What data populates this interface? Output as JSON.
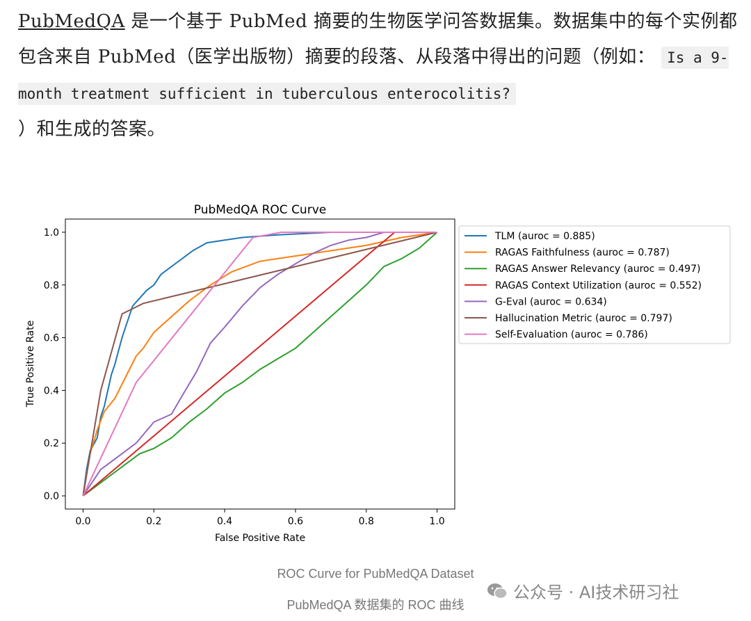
{
  "article": {
    "link_text": "PubMedQA",
    "text_1": " 是一个基于 PubMed 摘要的生物医学问答数据集。数据集中的每个实例都包含来自 PubMed（医学出版物）摘要的段落、从段落中得出的问题（例如：",
    "code_example": "Is a 9-month treatment sufficient in tuberculous enterocolitis?",
    "text_2": "）和生成的答案。"
  },
  "chart_data": {
    "type": "line",
    "title": "PubMedQA ROC Curve",
    "xlabel": "False Positive Rate",
    "ylabel": "True Positive Rate",
    "xlim": [
      -0.05,
      1.05
    ],
    "ylim": [
      -0.05,
      1.05
    ],
    "xticks": [
      "0.0",
      "0.2",
      "0.4",
      "0.6",
      "0.8",
      "1.0"
    ],
    "yticks": [
      "0.0",
      "0.2",
      "0.4",
      "0.6",
      "0.8",
      "1.0"
    ],
    "grid": false,
    "legend_position": "outside-right",
    "series": [
      {
        "name": "TLM (auroc = 0.885)",
        "color": "#1f77b4",
        "points": [
          [
            0,
            0
          ],
          [
            0.01,
            0.1
          ],
          [
            0.02,
            0.17
          ],
          [
            0.04,
            0.22
          ],
          [
            0.05,
            0.3
          ],
          [
            0.06,
            0.34
          ],
          [
            0.07,
            0.4
          ],
          [
            0.08,
            0.46
          ],
          [
            0.09,
            0.5
          ],
          [
            0.1,
            0.55
          ],
          [
            0.11,
            0.6
          ],
          [
            0.12,
            0.64
          ],
          [
            0.13,
            0.68
          ],
          [
            0.14,
            0.72
          ],
          [
            0.16,
            0.75
          ],
          [
            0.18,
            0.78
          ],
          [
            0.2,
            0.8
          ],
          [
            0.22,
            0.84
          ],
          [
            0.25,
            0.87
          ],
          [
            0.28,
            0.9
          ],
          [
            0.31,
            0.93
          ],
          [
            0.35,
            0.96
          ],
          [
            0.4,
            0.97
          ],
          [
            0.45,
            0.98
          ],
          [
            0.55,
            0.99
          ],
          [
            0.7,
            1.0
          ],
          [
            1.0,
            1.0
          ]
        ]
      },
      {
        "name": "RAGAS Faithfulness (auroc = 0.787)",
        "color": "#ff7f0e",
        "points": [
          [
            0,
            0
          ],
          [
            0.01,
            0.08
          ],
          [
            0.02,
            0.16
          ],
          [
            0.04,
            0.25
          ],
          [
            0.06,
            0.32
          ],
          [
            0.09,
            0.37
          ],
          [
            0.12,
            0.45
          ],
          [
            0.15,
            0.53
          ],
          [
            0.17,
            0.56
          ],
          [
            0.2,
            0.62
          ],
          [
            0.25,
            0.68
          ],
          [
            0.3,
            0.74
          ],
          [
            0.36,
            0.8
          ],
          [
            0.42,
            0.85
          ],
          [
            0.5,
            0.89
          ],
          [
            0.6,
            0.91
          ],
          [
            0.7,
            0.93
          ],
          [
            0.8,
            0.95
          ],
          [
            0.9,
            0.98
          ],
          [
            1.0,
            1.0
          ]
        ]
      },
      {
        "name": "RAGAS Answer Relevancy (auroc = 0.497)",
        "color": "#2ca02c",
        "points": [
          [
            0,
            0
          ],
          [
            0.04,
            0.04
          ],
          [
            0.08,
            0.08
          ],
          [
            0.12,
            0.12
          ],
          [
            0.16,
            0.16
          ],
          [
            0.2,
            0.18
          ],
          [
            0.25,
            0.22
          ],
          [
            0.3,
            0.28
          ],
          [
            0.35,
            0.33
          ],
          [
            0.4,
            0.39
          ],
          [
            0.45,
            0.43
          ],
          [
            0.5,
            0.48
          ],
          [
            0.55,
            0.52
          ],
          [
            0.6,
            0.56
          ],
          [
            0.65,
            0.62
          ],
          [
            0.7,
            0.68
          ],
          [
            0.75,
            0.74
          ],
          [
            0.8,
            0.8
          ],
          [
            0.85,
            0.87
          ],
          [
            0.9,
            0.9
          ],
          [
            0.95,
            0.94
          ],
          [
            1.0,
            1.0
          ]
        ]
      },
      {
        "name": "RAGAS Context Utilization (auroc = 0.552)",
        "color": "#d62728",
        "points": [
          [
            0,
            0
          ],
          [
            0.88,
            1.0
          ],
          [
            1.0,
            1.0
          ]
        ]
      },
      {
        "name": "G-Eval (auroc = 0.634)",
        "color": "#9467bd",
        "points": [
          [
            0,
            0
          ],
          [
            0.05,
            0.1
          ],
          [
            0.1,
            0.15
          ],
          [
            0.15,
            0.2
          ],
          [
            0.2,
            0.28
          ],
          [
            0.25,
            0.31
          ],
          [
            0.28,
            0.38
          ],
          [
            0.32,
            0.47
          ],
          [
            0.36,
            0.58
          ],
          [
            0.4,
            0.64
          ],
          [
            0.45,
            0.72
          ],
          [
            0.5,
            0.79
          ],
          [
            0.55,
            0.84
          ],
          [
            0.6,
            0.88
          ],
          [
            0.65,
            0.92
          ],
          [
            0.7,
            0.95
          ],
          [
            0.75,
            0.97
          ],
          [
            0.8,
            0.98
          ],
          [
            0.85,
            1.0
          ],
          [
            1.0,
            1.0
          ]
        ]
      },
      {
        "name": "Hallucination Metric (auroc = 0.797)",
        "color": "#8c564b",
        "points": [
          [
            0,
            0
          ],
          [
            0.05,
            0.4
          ],
          [
            0.11,
            0.69
          ],
          [
            0.14,
            0.71
          ],
          [
            0.17,
            0.73
          ],
          [
            1.0,
            1.0
          ]
        ]
      },
      {
        "name": "Self-Evaluation (auroc = 0.786)",
        "color": "#e377c2",
        "points": [
          [
            0,
            0
          ],
          [
            0.15,
            0.43
          ],
          [
            0.48,
            0.98
          ],
          [
            0.56,
            1.0
          ],
          [
            1.0,
            1.0
          ]
        ]
      }
    ]
  },
  "captions": {
    "en": "ROC Curve for PubMedQA Dataset",
    "zh": "PubMedQA 数据集的 ROC 曲线"
  },
  "watermark": {
    "text": "公众号 · AI技术研习社",
    "icon": "wechat-icon"
  }
}
